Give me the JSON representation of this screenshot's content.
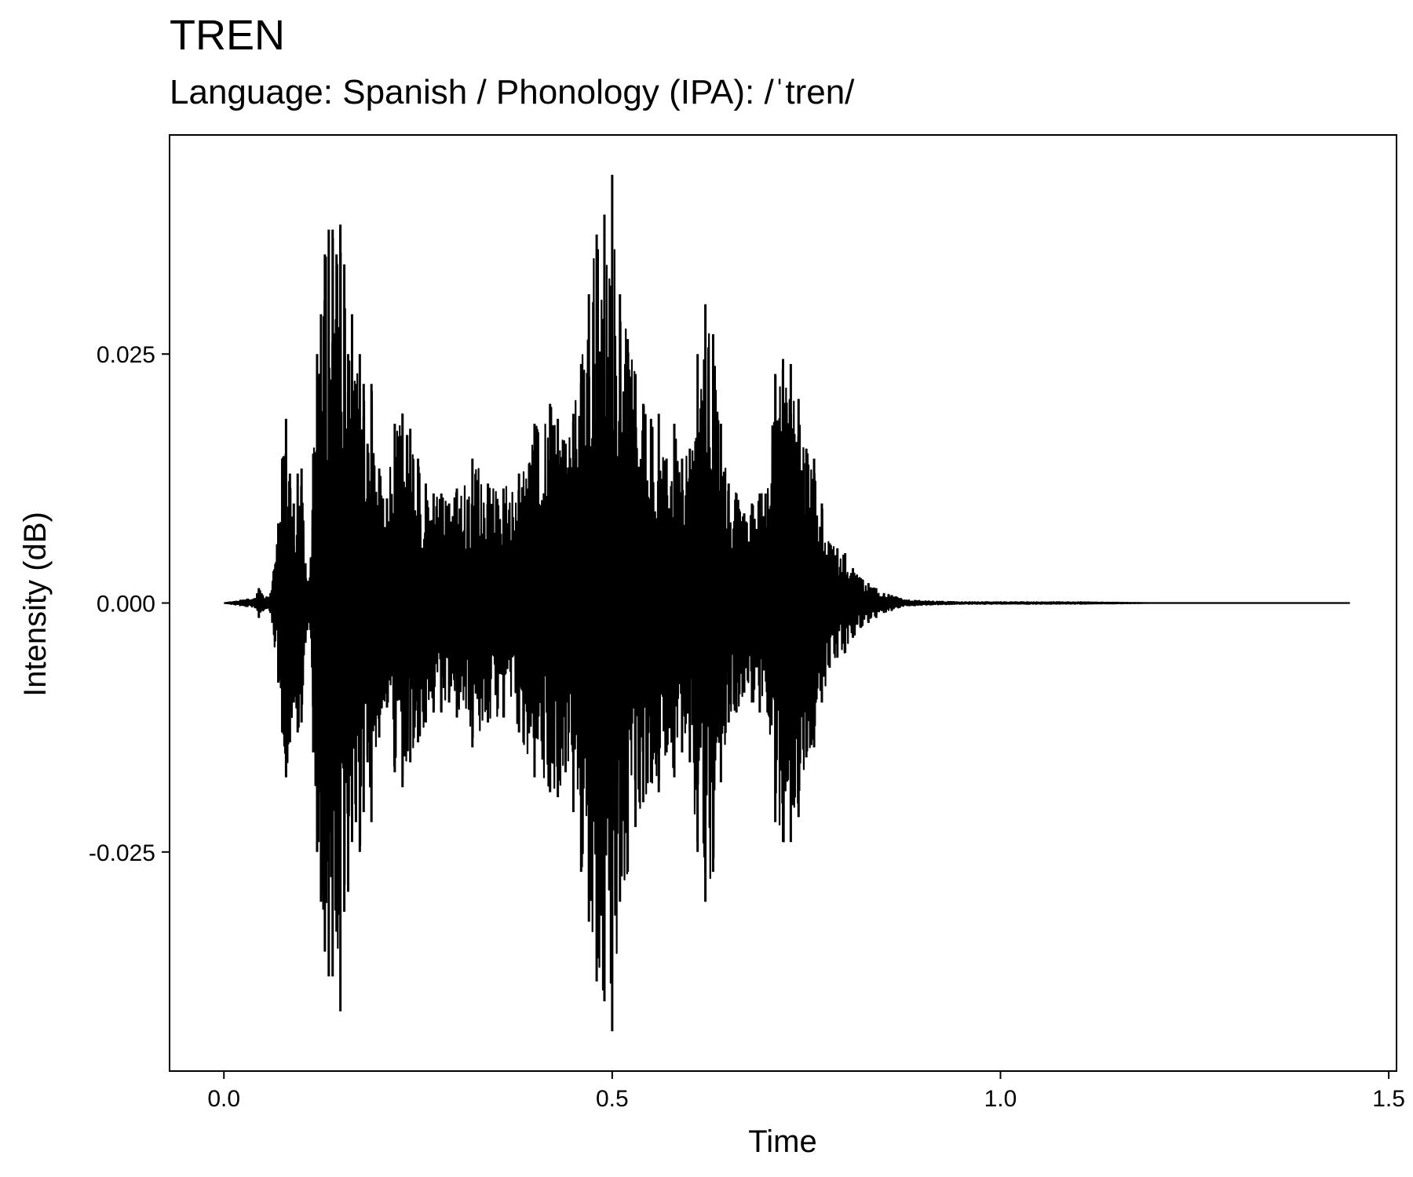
{
  "chart_data": {
    "type": "line",
    "title": "TREN",
    "subtitle": "Language: Spanish / Phonology (IPA): /ˈtren/",
    "xlabel": "Time",
    "ylabel": "Intensity (dB)",
    "xlim": [
      -0.07,
      1.51
    ],
    "ylim": [
      -0.047,
      0.047
    ],
    "x_ticks": [
      0.0,
      0.5,
      1.0,
      1.5
    ],
    "x_tick_labels": [
      "0.0",
      "0.5",
      "1.0",
      "1.5"
    ],
    "y_ticks": [
      -0.025,
      0.0,
      0.025
    ],
    "y_tick_labels": [
      "-0.025",
      "0.000",
      "0.025"
    ],
    "grid": false,
    "line_color": "#000000",
    "series": [
      {
        "x": [
          0.0,
          0.04,
          0.045,
          0.05,
          0.055,
          0.06,
          0.07,
          0.075,
          0.08,
          0.085,
          0.09,
          0.095,
          0.1,
          0.105,
          0.11,
          0.115,
          0.12,
          0.125,
          0.13,
          0.135,
          0.14,
          0.145,
          0.15,
          0.155,
          0.16,
          0.165,
          0.17,
          0.175,
          0.18,
          0.185,
          0.19,
          0.2,
          0.21,
          0.22,
          0.23,
          0.24,
          0.25,
          0.26,
          0.27,
          0.28,
          0.29,
          0.3,
          0.32,
          0.34,
          0.36,
          0.38,
          0.4,
          0.42,
          0.43,
          0.44,
          0.45,
          0.46,
          0.47,
          0.48,
          0.49,
          0.5,
          0.51,
          0.52,
          0.53,
          0.54,
          0.55,
          0.56,
          0.57,
          0.58,
          0.59,
          0.6,
          0.61,
          0.62,
          0.63,
          0.64,
          0.65,
          0.66,
          0.67,
          0.68,
          0.69,
          0.7,
          0.71,
          0.72,
          0.73,
          0.74,
          0.75,
          0.76,
          0.77,
          0.78,
          0.79,
          0.8,
          0.81,
          0.82,
          0.83,
          0.84,
          0.85,
          0.86,
          0.87,
          0.88,
          0.89,
          0.9,
          0.95,
          1.0,
          1.1,
          1.2,
          1.3,
          1.4,
          1.45
        ],
        "max": [
          0.0,
          0.0005,
          0.0015,
          0.0008,
          0.0006,
          0.001,
          0.008,
          0.0145,
          0.0185,
          0.013,
          0.01,
          0.013,
          0.0135,
          0.004,
          0.002,
          0.015,
          0.025,
          0.029,
          0.035,
          0.0375,
          0.0375,
          0.035,
          0.038,
          0.034,
          0.025,
          0.029,
          0.022,
          0.025,
          0.022,
          0.016,
          0.022,
          0.0135,
          0.0105,
          0.018,
          0.019,
          0.0175,
          0.0145,
          0.012,
          0.011,
          0.011,
          0.01,
          0.0115,
          0.0145,
          0.012,
          0.0115,
          0.013,
          0.018,
          0.02,
          0.0185,
          0.016,
          0.019,
          0.024,
          0.031,
          0.037,
          0.039,
          0.043,
          0.031,
          0.0265,
          0.023,
          0.02,
          0.0185,
          0.019,
          0.0145,
          0.018,
          0.0145,
          0.0155,
          0.025,
          0.03,
          0.027,
          0.018,
          0.012,
          0.011,
          0.009,
          0.01,
          0.011,
          0.011,
          0.023,
          0.0245,
          0.024,
          0.0205,
          0.0155,
          0.0145,
          0.01,
          0.006,
          0.0055,
          0.005,
          0.0035,
          0.0025,
          0.002,
          0.0015,
          0.001,
          0.0008,
          0.0005,
          0.0003,
          0.0003,
          0.0002,
          0.0001,
          0.0001,
          0.0001,
          0.0,
          0.0,
          0.0,
          0.0
        ],
        "min": [
          0.0,
          -0.0005,
          -0.0015,
          -0.0008,
          -0.0006,
          -0.001,
          -0.008,
          -0.013,
          -0.0175,
          -0.014,
          -0.01,
          -0.013,
          -0.012,
          -0.004,
          -0.002,
          -0.015,
          -0.025,
          -0.03,
          -0.035,
          -0.0375,
          -0.0375,
          -0.033,
          -0.041,
          -0.031,
          -0.029,
          -0.024,
          -0.022,
          -0.025,
          -0.021,
          -0.016,
          -0.022,
          -0.0135,
          -0.0105,
          -0.017,
          -0.0185,
          -0.016,
          -0.014,
          -0.012,
          -0.011,
          -0.011,
          -0.01,
          -0.0115,
          -0.0145,
          -0.012,
          -0.0115,
          -0.013,
          -0.0175,
          -0.019,
          -0.0195,
          -0.017,
          -0.021,
          -0.027,
          -0.032,
          -0.038,
          -0.04,
          -0.043,
          -0.03,
          -0.027,
          -0.0225,
          -0.02,
          -0.018,
          -0.019,
          -0.015,
          -0.0175,
          -0.015,
          -0.016,
          -0.025,
          -0.03,
          -0.027,
          -0.018,
          -0.012,
          -0.011,
          -0.009,
          -0.01,
          -0.011,
          -0.011,
          -0.022,
          -0.024,
          -0.024,
          -0.0215,
          -0.0155,
          -0.0145,
          -0.01,
          -0.0065,
          -0.0055,
          -0.005,
          -0.0035,
          -0.0025,
          -0.002,
          -0.0015,
          -0.001,
          -0.0008,
          -0.0005,
          -0.0003,
          -0.0003,
          -0.0002,
          -0.0001,
          -0.0001,
          -0.0001,
          0.0,
          0.0,
          0.0,
          0.0
        ]
      }
    ]
  }
}
